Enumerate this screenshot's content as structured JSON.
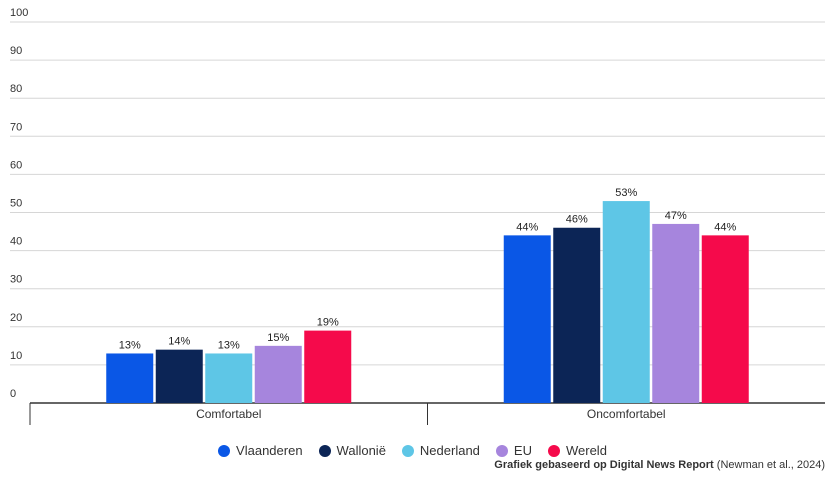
{
  "chart_data": {
    "type": "bar",
    "categories": [
      "Comfortabel",
      "Oncomfortabel"
    ],
    "series": [
      {
        "name": "Vlaanderen",
        "color": "#0a57e6",
        "values": [
          13,
          44
        ],
        "labels": [
          "13%",
          "44%"
        ]
      },
      {
        "name": "Wallonië",
        "color": "#0c2556",
        "values": [
          14,
          46
        ],
        "labels": [
          "14%",
          "46%"
        ]
      },
      {
        "name": "Nederland",
        "color": "#5ec6e6",
        "values": [
          13,
          53
        ],
        "labels": [
          "13%",
          "53%"
        ]
      },
      {
        "name": "EU",
        "color": "#a685dd",
        "values": [
          15,
          47
        ],
        "labels": [
          "15%",
          "47%"
        ]
      },
      {
        "name": "Wereld",
        "color": "#f50a4b",
        "values": [
          19,
          44
        ],
        "labels": [
          "19%",
          "44%"
        ]
      }
    ],
    "yticks": [
      "0",
      "10",
      "20",
      "30",
      "40",
      "50",
      "60",
      "70",
      "80",
      "90",
      "100"
    ],
    "ylim": [
      0,
      100
    ],
    "grid": true,
    "legend_position": "bottom"
  },
  "source": {
    "bold": "Grafiek gebaseerd op Digital News Report",
    "rest": " (Newman et al., 2024)"
  }
}
